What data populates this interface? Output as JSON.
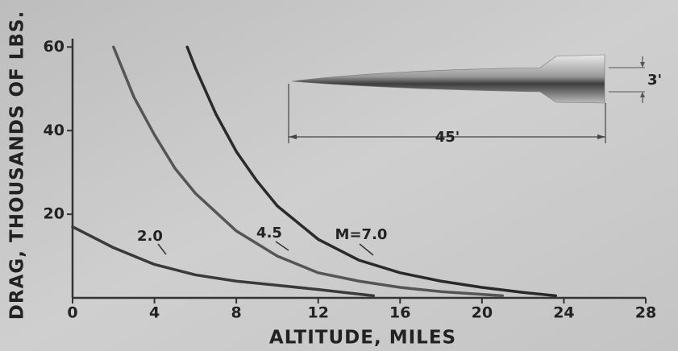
{
  "chart_data": {
    "type": "line",
    "x_label": "ALTITUDE, MILES",
    "y_label": "DRAG, THOUSANDS OF LBS.",
    "xlim": [
      0,
      28
    ],
    "ylim": [
      0,
      62
    ],
    "xticks": [
      0,
      4,
      8,
      12,
      16,
      20,
      24,
      28
    ],
    "yticks": [
      20,
      40,
      60
    ],
    "series": [
      {
        "name": "2.0",
        "color": "#3a3a3a",
        "x": [
          0,
          2,
          4,
          6,
          8,
          10,
          12,
          14.7
        ],
        "values": [
          17,
          12,
          8,
          5.5,
          4,
          3,
          2,
          0.5
        ]
      },
      {
        "name": "4.5",
        "color": "#555555",
        "x": [
          2,
          3,
          4,
          5,
          6,
          8,
          10,
          12,
          14,
          16,
          18,
          21
        ],
        "values": [
          60,
          48,
          39,
          31,
          25,
          16,
          10,
          6,
          4,
          2.5,
          1.5,
          0.5
        ]
      },
      {
        "name": "M=7.0",
        "color": "#2a2a2a",
        "x": [
          5.6,
          6,
          7,
          8,
          9,
          10,
          12,
          14,
          16,
          18,
          20,
          22,
          23.6
        ],
        "values": [
          60,
          55,
          44,
          35,
          28,
          22,
          14,
          9,
          6,
          4,
          2.5,
          1.3,
          0.5
        ]
      }
    ],
    "annotations": [
      "3'",
      "45'"
    ]
  }
}
